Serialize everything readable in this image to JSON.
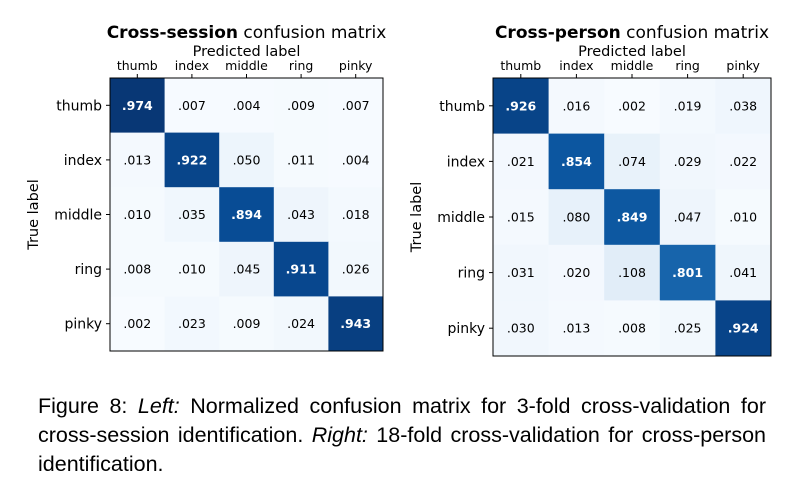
{
  "chart_data": [
    {
      "type": "heatmap",
      "title_bold": "Cross-session",
      "title_rest": " confusion matrix",
      "xlabel": "Predicted label",
      "ylabel": "True label",
      "x_labels": [
        "thumb",
        "index",
        "middle",
        "ring",
        "pinky"
      ],
      "y_labels": [
        "thumb",
        "index",
        "middle",
        "ring",
        "pinky"
      ],
      "values": [
        [
          0.974,
          0.007,
          0.004,
          0.009,
          0.007
        ],
        [
          0.013,
          0.922,
          0.05,
          0.011,
          0.004
        ],
        [
          0.01,
          0.035,
          0.894,
          0.043,
          0.018
        ],
        [
          0.008,
          0.01,
          0.045,
          0.911,
          0.026
        ],
        [
          0.002,
          0.023,
          0.009,
          0.024,
          0.943
        ]
      ],
      "cell_labels": [
        [
          ".974",
          ".007",
          ".004",
          ".009",
          ".007"
        ],
        [
          ".013",
          ".922",
          ".050",
          ".011",
          ".004"
        ],
        [
          ".010",
          ".035",
          ".894",
          ".043",
          ".018"
        ],
        [
          ".008",
          ".010",
          ".045",
          ".911",
          ".026"
        ],
        [
          ".002",
          ".023",
          ".009",
          ".024",
          ".943"
        ]
      ],
      "colormap": "Blues",
      "vmin": 0,
      "vmax": 1
    },
    {
      "type": "heatmap",
      "title_bold": "Cross-person",
      "title_rest": " confusion matrix",
      "xlabel": "Predicted label",
      "ylabel": "True label",
      "x_labels": [
        "thumb",
        "index",
        "middle",
        "ring",
        "pinky"
      ],
      "y_labels": [
        "thumb",
        "index",
        "middle",
        "ring",
        "pinky"
      ],
      "values": [
        [
          0.926,
          0.016,
          0.002,
          0.019,
          0.038
        ],
        [
          0.021,
          0.854,
          0.074,
          0.029,
          0.022
        ],
        [
          0.015,
          0.08,
          0.849,
          0.047,
          0.01
        ],
        [
          0.031,
          0.02,
          0.108,
          0.801,
          0.041
        ],
        [
          0.03,
          0.013,
          0.008,
          0.025,
          0.924
        ]
      ],
      "cell_labels": [
        [
          ".926",
          ".016",
          ".002",
          ".019",
          ".038"
        ],
        [
          ".021",
          ".854",
          ".074",
          ".029",
          ".022"
        ],
        [
          ".015",
          ".080",
          ".849",
          ".047",
          ".010"
        ],
        [
          ".031",
          ".020",
          ".108",
          ".801",
          ".041"
        ],
        [
          ".030",
          ".013",
          ".008",
          ".025",
          ".924"
        ]
      ],
      "colormap": "Blues",
      "vmin": 0,
      "vmax": 1
    }
  ],
  "caption": {
    "prefix": "Figure 8: ",
    "left_label": "Left:",
    "left_text": " Normalized confusion matrix for 3-fold cross-validation for cross-session identification. ",
    "right_label": "Right:",
    "right_text": " 18-fold cross-validation for cross-person identification."
  }
}
